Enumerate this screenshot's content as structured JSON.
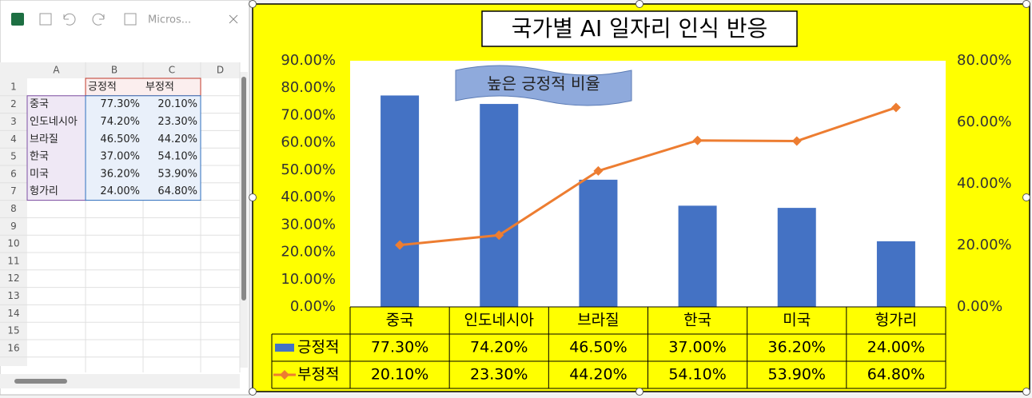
{
  "spreadsheet": {
    "window_title": "Micros...",
    "columns": [
      "A",
      "B",
      "C",
      "D"
    ],
    "rows": [
      "1",
      "2",
      "3",
      "4",
      "5",
      "6",
      "7",
      "8",
      "9",
      "10",
      "11",
      "12",
      "13",
      "14",
      "15",
      "16"
    ],
    "cells": [
      [
        null,
        "긍정적",
        "부정적"
      ],
      [
        "중국",
        "77.30%",
        "20.10%"
      ],
      [
        "인도네시아",
        "74.20%",
        "23.30%"
      ],
      [
        "브라질",
        "46.50%",
        "44.20%"
      ],
      [
        "한국",
        "37.00%",
        "54.10%"
      ],
      [
        "미국",
        "36.20%",
        "53.90%"
      ],
      [
        "헝가리",
        "24.00%",
        "64.80%"
      ]
    ]
  },
  "chart_data": {
    "type": "bar-line",
    "title": "국가별 AI 일자리 인식 반응",
    "annotation": "높은 긍정적 비율",
    "categories": [
      "중국",
      "인도네시아",
      "브라질",
      "한국",
      "미국",
      "헝가리"
    ],
    "series": [
      {
        "name": "긍정적",
        "color": "#4472c4",
        "type": "bar",
        "values": [
          77.3,
          74.2,
          46.5,
          37,
          36.2,
          24
        ],
        "value_labels": [
          "77.30%",
          "74.20%",
          "46.50%",
          "37.00%",
          "36.20%",
          "24.00%"
        ]
      },
      {
        "name": "부정적",
        "color": "#ed7d31",
        "type": "line",
        "axis": "y2",
        "values": [
          20.1,
          23.3,
          44.2,
          54.1,
          53.9,
          64.8
        ],
        "value_labels": [
          "20.10%",
          "23.30%",
          "44.20%",
          "54.10%",
          "53.90%",
          "64.80%"
        ]
      }
    ],
    "ylim": [
      0,
      90
    ],
    "yticks": [
      {
        "value": 0,
        "label": "0.00%"
      },
      {
        "value": 10,
        "label": "10.00%"
      },
      {
        "value": 20,
        "label": "20.00%"
      },
      {
        "value": 30,
        "label": "30.00%"
      },
      {
        "value": 40,
        "label": "40.00%"
      },
      {
        "value": 50,
        "label": "50.00%"
      },
      {
        "value": 60,
        "label": "60.00%"
      },
      {
        "value": 70,
        "label": "70.00%"
      },
      {
        "value": 80,
        "label": "80.00%"
      },
      {
        "value": 90,
        "label": "90.00%"
      }
    ],
    "y2lim": [
      0,
      80
    ],
    "y2ticks": [
      {
        "value": 0,
        "label": "0.00%"
      },
      {
        "value": 20,
        "label": "20.00%"
      },
      {
        "value": 40,
        "label": "40.00%"
      },
      {
        "value": 60,
        "label": "60.00%"
      },
      {
        "value": 80,
        "label": "80.00%"
      }
    ],
    "grid": false,
    "legend": "data-table",
    "background": "#ffff00"
  }
}
